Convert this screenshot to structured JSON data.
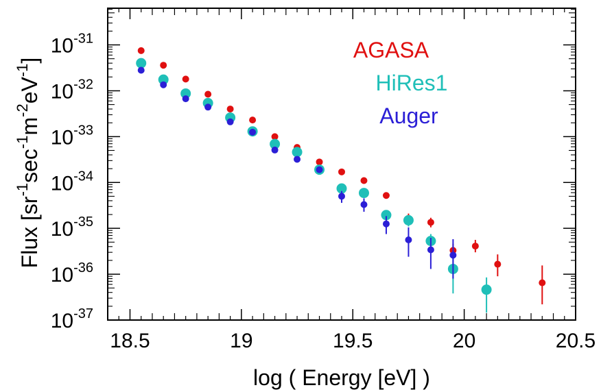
{
  "chart_data": {
    "type": "scatter",
    "xlabel": "log ( Energy  [eV] )",
    "ylabel": {
      "prefix": "Flux  [sr",
      "parts": [
        {
          "base": "sr",
          "exp": "-1"
        },
        {
          "base": "sec",
          "exp": "-1"
        },
        {
          "base": "m",
          "exp": "-2"
        },
        {
          "base": "eV",
          "exp": "-1"
        }
      ]
    },
    "xlim": [
      18.4,
      20.5
    ],
    "ylim_log10": [
      -37,
      -30.2
    ],
    "y_scale": "log",
    "x_ticks": [
      {
        "value": 18.5,
        "label": "18.5"
      },
      {
        "value": 19,
        "label": "19"
      },
      {
        "value": 19.5,
        "label": "19.5"
      },
      {
        "value": 20,
        "label": "20"
      },
      {
        "value": 20.5,
        "label": "20.5"
      }
    ],
    "y_ticks": [
      {
        "exp": -31,
        "base": "10",
        "sup": "-31"
      },
      {
        "exp": -32,
        "base": "10",
        "sup": "-32"
      },
      {
        "exp": -33,
        "base": "10",
        "sup": "-33"
      },
      {
        "exp": -34,
        "base": "10",
        "sup": "-34"
      },
      {
        "exp": -35,
        "base": "10",
        "sup": "-35"
      },
      {
        "exp": -36,
        "base": "10",
        "sup": "-36"
      },
      {
        "exp": -37,
        "base": "10",
        "sup": "-37"
      }
    ],
    "legend_position": "top-right",
    "series": [
      {
        "name": "AGASA",
        "color": "#e01010",
        "marker_size": "small",
        "points": [
          {
            "x": 18.55,
            "y": 7.5e-32
          },
          {
            "x": 18.65,
            "y": 3.6e-32
          },
          {
            "x": 18.75,
            "y": 1.8e-32
          },
          {
            "x": 18.85,
            "y": 8.4e-33
          },
          {
            "x": 18.95,
            "y": 4e-33
          },
          {
            "x": 19.05,
            "y": 2.3e-33
          },
          {
            "x": 19.15,
            "y": 1e-33
          },
          {
            "x": 19.25,
            "y": 5.8e-34
          },
          {
            "x": 19.35,
            "y": 2.8e-34
          },
          {
            "x": 19.45,
            "y": 1.7e-34
          },
          {
            "x": 19.55,
            "y": 1.1e-34
          },
          {
            "x": 19.65,
            "y": 5.2e-35
          },
          {
            "x": 19.75,
            "y": 1.65e-35,
            "y_low": 1.3e-35,
            "y_high": 2.1e-35
          },
          {
            "x": 19.85,
            "y": 1.35e-35,
            "y_low": 1.05e-35,
            "y_high": 1.7e-35
          },
          {
            "x": 19.95,
            "y": 3.3e-36,
            "y_low": 2.3e-36,
            "y_high": 4.6e-36
          },
          {
            "x": 20.05,
            "y": 4.1e-36,
            "y_low": 3e-36,
            "y_high": 5.6e-36
          },
          {
            "x": 20.15,
            "y": 1.65e-36,
            "y_low": 9e-37,
            "y_high": 2.7e-36
          },
          {
            "x": 20.35,
            "y": 6.5e-37,
            "y_low": 2.2e-37,
            "y_high": 1.55e-36
          }
        ]
      },
      {
        "name": "HiRes1",
        "color": "#1fbfb8",
        "marker_size": "large",
        "points": [
          {
            "x": 18.55,
            "y": 4e-32
          },
          {
            "x": 18.65,
            "y": 1.75e-32
          },
          {
            "x": 18.75,
            "y": 8.7e-33
          },
          {
            "x": 18.85,
            "y": 5.4e-33
          },
          {
            "x": 18.95,
            "y": 2.6e-33
          },
          {
            "x": 19.05,
            "y": 1.3e-33
          },
          {
            "x": 19.15,
            "y": 6.9e-34
          },
          {
            "x": 19.25,
            "y": 4.6e-34
          },
          {
            "x": 19.35,
            "y": 1.9e-34
          },
          {
            "x": 19.45,
            "y": 7.4e-35
          },
          {
            "x": 19.55,
            "y": 5.9e-35
          },
          {
            "x": 19.65,
            "y": 1.95e-35,
            "y_low": 1.6e-35,
            "y_high": 2.4e-35
          },
          {
            "x": 19.75,
            "y": 1.5e-35,
            "y_low": 1.1e-35,
            "y_high": 1.9e-35
          },
          {
            "x": 19.85,
            "y": 5.3e-36,
            "y_low": 3.6e-36,
            "y_high": 7.5e-36
          },
          {
            "x": 19.95,
            "y": 1.3e-36,
            "y_low": 3.8e-37,
            "y_high": 2.8e-36
          },
          {
            "x": 20.1,
            "y": 4.6e-37,
            "y_low": 1.45e-37,
            "y_high": 8.5e-37
          }
        ]
      },
      {
        "name": "Auger",
        "color": "#2b1fd6",
        "marker_size": "small",
        "points": [
          {
            "x": 18.55,
            "y": 2.8e-32
          },
          {
            "x": 18.65,
            "y": 1.35e-32
          },
          {
            "x": 18.75,
            "y": 6.7e-33
          },
          {
            "x": 18.85,
            "y": 4.4e-33
          },
          {
            "x": 18.95,
            "y": 2.1e-33
          },
          {
            "x": 19.05,
            "y": 1.25e-33
          },
          {
            "x": 19.15,
            "y": 5.1e-34
          },
          {
            "x": 19.25,
            "y": 3.2e-34
          },
          {
            "x": 19.35,
            "y": 1.9e-34
          },
          {
            "x": 19.45,
            "y": 5e-35,
            "y_low": 3.6e-35,
            "y_high": 6.5e-35
          },
          {
            "x": 19.55,
            "y": 3.3e-35,
            "y_low": 2.3e-35,
            "y_high": 4.5e-35
          },
          {
            "x": 19.65,
            "y": 1.25e-35,
            "y_low": 7.5e-36,
            "y_high": 1.85e-35
          },
          {
            "x": 19.75,
            "y": 5.6e-36,
            "y_low": 2.4e-36,
            "y_high": 1.05e-35
          },
          {
            "x": 19.85,
            "y": 3.4e-36,
            "y_low": 1.3e-36,
            "y_high": 6.2e-36
          },
          {
            "x": 19.95,
            "y": 2.6e-36,
            "y_low": 8e-37,
            "y_high": 5.8e-36
          }
        ]
      }
    ]
  }
}
